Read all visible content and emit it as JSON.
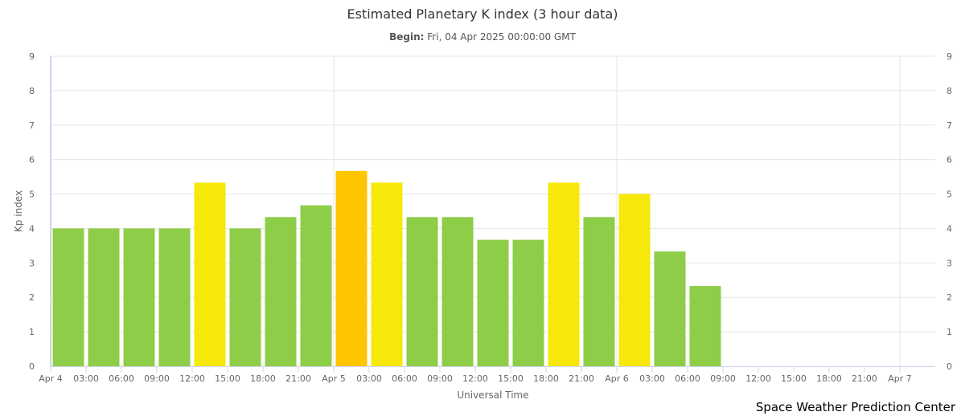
{
  "chart_data": {
    "type": "bar",
    "title": "Estimated Planetary K index (3 hour data)",
    "subtitle_label": "Begin:",
    "subtitle_value": "Fri, 04 Apr 2025 00:00:00 GMT",
    "xlabel": "Universal Time",
    "ylabel": "Kp index",
    "ylim": [
      0,
      9
    ],
    "yticks": [
      "0",
      "1",
      "2",
      "3",
      "4",
      "5",
      "6",
      "7",
      "8",
      "9"
    ],
    "xlim_hours": [
      0,
      75
    ],
    "xtick_labels": [
      "Apr 4",
      "03:00",
      "06:00",
      "09:00",
      "12:00",
      "15:00",
      "18:00",
      "21:00",
      "Apr 5",
      "03:00",
      "06:00",
      "09:00",
      "12:00",
      "15:00",
      "18:00",
      "21:00",
      "Apr 6",
      "03:00",
      "06:00",
      "09:00",
      "12:00",
      "15:00",
      "18:00",
      "21:00",
      "Apr 7"
    ],
    "bar_interval_hours": 3,
    "values": [
      4,
      4,
      4,
      4,
      5.33,
      4,
      4.33,
      4.67,
      5.67,
      5.33,
      4.33,
      4.33,
      3.67,
      3.67,
      5.33,
      4.33,
      5,
      3.33,
      2.33
    ],
    "colors": {
      "below_5": "#8ecd48",
      "kp5": "#f6e80a",
      "kp6": "#ffc600",
      "grid": "#e6e6e6",
      "axis": "#ccd6eb"
    },
    "grid": true,
    "legend": "none"
  },
  "credit": "Space Weather Prediction Center"
}
